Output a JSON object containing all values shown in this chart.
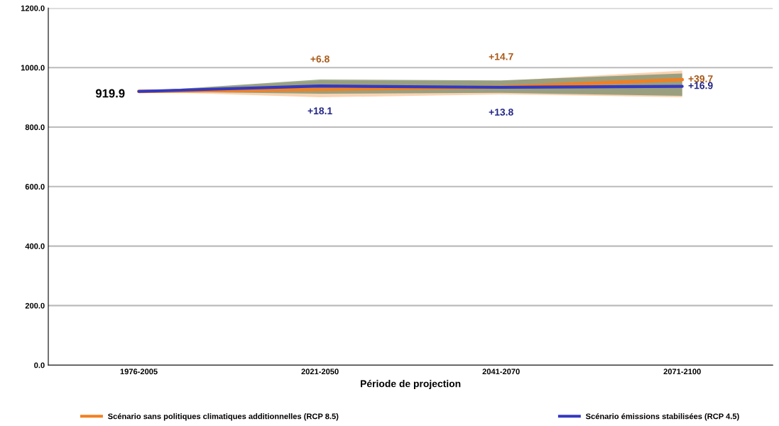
{
  "chart_data": {
    "type": "line",
    "xlabel": "Période de projection",
    "categories": [
      "1976-2005",
      "2021-2050",
      "2041-2070",
      "2071-2100"
    ],
    "series": [
      {
        "name": "Scénario sans politiques climatiques additionnelles (RCP 8.5)",
        "color": "#f28022",
        "values": [
          919.9,
          926.7,
          934.6,
          959.6
        ],
        "lower": [
          919.9,
          900,
          910,
          900
        ],
        "upper": [
          919.9,
          955,
          955,
          990
        ],
        "value_labels": [
          "919.9",
          null,
          null,
          null
        ]
      },
      {
        "name": "Scénario émissions stabilisées (RCP 4.5)",
        "color": "#3438c0",
        "values": [
          919.9,
          938.0,
          933.7,
          936.8
        ],
        "lower": [
          919.9,
          912,
          915,
          905
        ],
        "upper": [
          919.9,
          960,
          957,
          980
        ]
      }
    ],
    "annotations": [
      {
        "text": "+6.8",
        "x": "2021-2050",
        "y": 926.7
      },
      {
        "text": "+14.7",
        "x": "2041-2070",
        "y": 934.6
      },
      {
        "text": "+39.7",
        "x": "2071-2100",
        "y": 959.6
      },
      {
        "text": "+18.1",
        "x": "2021-2050",
        "y": 938.0
      },
      {
        "text": "+13.8",
        "x": "2041-2070",
        "y": 933.7
      },
      {
        "text": "+16.9",
        "x": "2071-2100",
        "y": 936.8
      }
    ],
    "ylim": [
      0,
      1200
    ],
    "yticks": [
      {
        "value": 0,
        "label": "0.0"
      },
      {
        "value": 200,
        "label": "200.0"
      },
      {
        "value": 400,
        "label": "400.0"
      },
      {
        "value": 600,
        "label": "600.0"
      },
      {
        "value": 800,
        "label": "800.0"
      },
      {
        "value": 1000,
        "label": "1000.0"
      },
      {
        "value": 1200,
        "label": "1200.0"
      }
    ],
    "grid": "y",
    "legend": "bottom"
  }
}
